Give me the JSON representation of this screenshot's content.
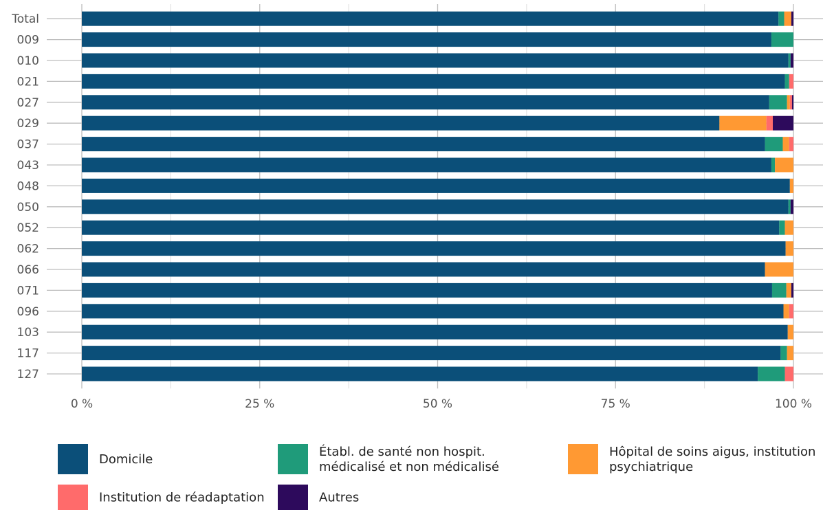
{
  "chart_data": {
    "type": "bar",
    "orientation": "horizontal",
    "stacked": true,
    "percent": true,
    "categories": [
      "Total",
      "009",
      "010",
      "021",
      "027",
      "029",
      "037",
      "043",
      "048",
      "050",
      "052",
      "062",
      "066",
      "071",
      "096",
      "103",
      "117",
      "127"
    ],
    "series": [
      {
        "name": "Domicile",
        "color": "#0b4f79",
        "values": [
          97.9,
          96.9,
          99.3,
          98.8,
          96.6,
          89.6,
          96.0,
          96.9,
          99.5,
          99.3,
          98.0,
          98.9,
          96.0,
          97.0,
          98.6,
          99.2,
          98.2,
          95.0
        ]
      },
      {
        "name": "Établ. de santé non hospit. médicalisé et non médicalisé",
        "color": "#1f9b7a",
        "values": [
          0.8,
          3.1,
          0.3,
          0.6,
          2.5,
          0.0,
          2.5,
          0.5,
          0.0,
          0.3,
          0.8,
          0.0,
          0.0,
          2.0,
          0.0,
          0.0,
          0.9,
          3.8
        ]
      },
      {
        "name": "Hôpital de soins aigus, institution psychiatrique",
        "color": "#ff9933",
        "values": [
          1.0,
          0.0,
          0.0,
          0.0,
          0.4,
          6.6,
          0.9,
          2.6,
          0.5,
          0.0,
          1.2,
          1.1,
          4.0,
          0.7,
          0.8,
          0.8,
          0.9,
          0.0
        ]
      },
      {
        "name": "Institution de réadaptation",
        "color": "#ff6b6b",
        "values": [
          0.0,
          0.0,
          0.0,
          0.6,
          0.3,
          0.9,
          0.6,
          0.0,
          0.0,
          0.0,
          0.0,
          0.0,
          0.0,
          0.0,
          0.6,
          0.0,
          0.0,
          1.2
        ]
      },
      {
        "name": "Autres",
        "color": "#2d0a5c",
        "values": [
          0.3,
          0.0,
          0.4,
          0.0,
          0.2,
          2.9,
          0.0,
          0.0,
          0.0,
          0.4,
          0.0,
          0.0,
          0.0,
          0.3,
          0.0,
          0.0,
          0.0,
          0.0
        ]
      }
    ],
    "xlim": [
      0,
      100
    ],
    "x_ticks": [
      "0 %",
      "25 %",
      "50 %",
      "75 %",
      "100 %"
    ],
    "x_tick_values": [
      0,
      25,
      50,
      75,
      100
    ],
    "grid": true,
    "legend_position": "bottom",
    "title": "",
    "xlabel": "",
    "ylabel": ""
  }
}
